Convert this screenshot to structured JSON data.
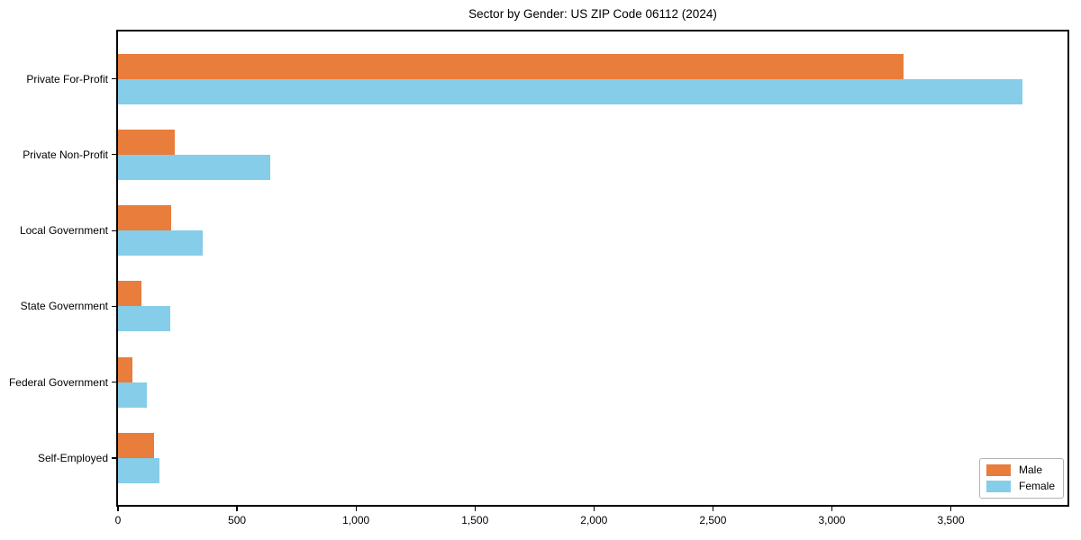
{
  "chart_data": {
    "type": "bar",
    "orientation": "horizontal",
    "title": "Sector by Gender: US ZIP Code 06112 (2024)",
    "categories": [
      "Private For-Profit",
      "Private Non-Profit",
      "Local Government",
      "State Government",
      "Federal Government",
      "Self-Employed"
    ],
    "series": [
      {
        "name": "Male",
        "color": "#e87d3c",
        "values": [
          3300,
          240,
          225,
          100,
          60,
          150
        ]
      },
      {
        "name": "Female",
        "color": "#85cde8",
        "values": [
          3800,
          640,
          355,
          220,
          120,
          175
        ]
      }
    ],
    "xlabel": "",
    "ylabel": "",
    "xlim": [
      0,
      3990
    ],
    "xticks": [
      0,
      500,
      1000,
      1500,
      2000,
      2500,
      3000,
      3500
    ],
    "xtick_labels": [
      "0",
      "500",
      "1,000",
      "1,500",
      "2,000",
      "2,500",
      "3,000",
      "3,500"
    ],
    "grid": false,
    "legend": {
      "position": "lower-right"
    },
    "colors": {
      "background": "#ffffff",
      "frame": "#000000",
      "legend_border": "#b3b3b3"
    }
  }
}
